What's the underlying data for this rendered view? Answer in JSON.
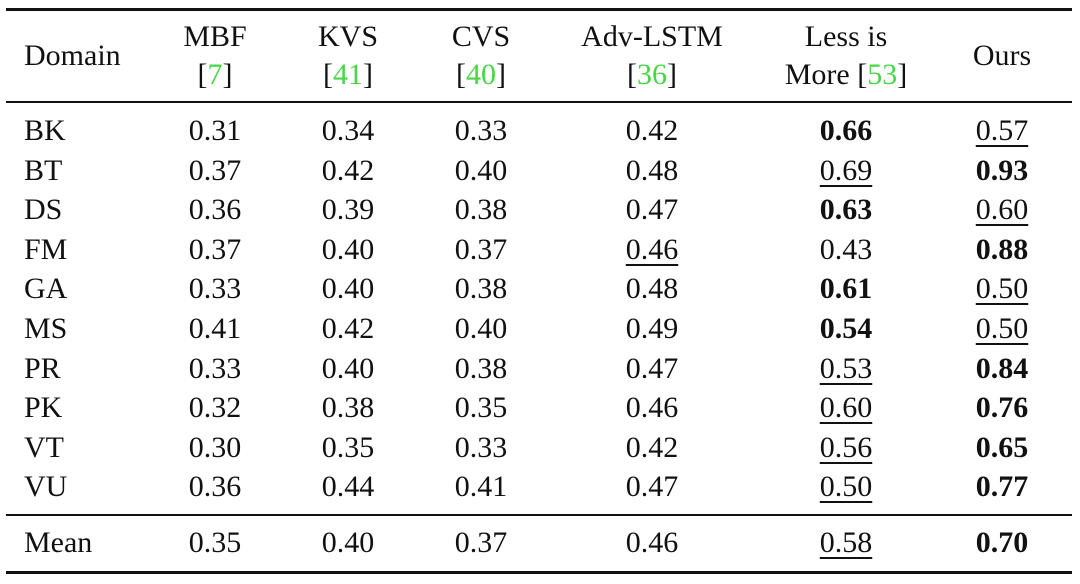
{
  "table": {
    "columns": [
      {
        "lines": [
          [
            {
              "text": "Domain"
            }
          ]
        ],
        "align": "left"
      },
      {
        "lines": [
          [
            {
              "text": "MBF"
            }
          ],
          [
            {
              "text": "["
            },
            {
              "text": "7",
              "color": "#45d745"
            },
            {
              "text": "]"
            }
          ]
        ]
      },
      {
        "lines": [
          [
            {
              "text": "KVS"
            }
          ],
          [
            {
              "text": "["
            },
            {
              "text": "41",
              "color": "#45d745"
            },
            {
              "text": "]"
            }
          ]
        ]
      },
      {
        "lines": [
          [
            {
              "text": "CVS"
            }
          ],
          [
            {
              "text": "["
            },
            {
              "text": "40",
              "color": "#45d745"
            },
            {
              "text": "]"
            }
          ]
        ]
      },
      {
        "lines": [
          [
            {
              "text": "Adv-LSTM"
            }
          ],
          [
            {
              "text": "["
            },
            {
              "text": "36",
              "color": "#45d745"
            },
            {
              "text": "]"
            }
          ]
        ]
      },
      {
        "lines": [
          [
            {
              "text": "Less is"
            }
          ],
          [
            {
              "text": "More ["
            },
            {
              "text": "53",
              "color": "#45d745"
            },
            {
              "text": "]"
            }
          ]
        ]
      },
      {
        "lines": [
          [
            {
              "text": "Ours"
            }
          ]
        ]
      }
    ],
    "rows": [
      [
        {
          "text": "BK"
        },
        {
          "text": "0.31"
        },
        {
          "text": "0.34"
        },
        {
          "text": "0.33"
        },
        {
          "text": "0.42"
        },
        {
          "text": "0.66",
          "style": "bold"
        },
        {
          "text": "0.57",
          "style": "underline"
        }
      ],
      [
        {
          "text": "BT"
        },
        {
          "text": "0.37"
        },
        {
          "text": "0.42"
        },
        {
          "text": "0.40"
        },
        {
          "text": "0.48"
        },
        {
          "text": "0.69",
          "style": "underline"
        },
        {
          "text": "0.93",
          "style": "bold"
        }
      ],
      [
        {
          "text": "DS"
        },
        {
          "text": "0.36"
        },
        {
          "text": "0.39"
        },
        {
          "text": "0.38"
        },
        {
          "text": "0.47"
        },
        {
          "text": "0.63",
          "style": "bold"
        },
        {
          "text": "0.60",
          "style": "underline"
        }
      ],
      [
        {
          "text": "FM"
        },
        {
          "text": "0.37"
        },
        {
          "text": "0.40"
        },
        {
          "text": "0.37"
        },
        {
          "text": "0.46",
          "style": "underline"
        },
        {
          "text": "0.43"
        },
        {
          "text": "0.88",
          "style": "bold"
        }
      ],
      [
        {
          "text": "GA"
        },
        {
          "text": "0.33"
        },
        {
          "text": "0.40"
        },
        {
          "text": "0.38"
        },
        {
          "text": "0.48"
        },
        {
          "text": "0.61",
          "style": "bold"
        },
        {
          "text": "0.50",
          "style": "underline"
        }
      ],
      [
        {
          "text": "MS"
        },
        {
          "text": "0.41"
        },
        {
          "text": "0.42"
        },
        {
          "text": "0.40"
        },
        {
          "text": "0.49"
        },
        {
          "text": "0.54",
          "style": "bold"
        },
        {
          "text": "0.50",
          "style": "underline"
        }
      ],
      [
        {
          "text": "PR"
        },
        {
          "text": "0.33"
        },
        {
          "text": "0.40"
        },
        {
          "text": "0.38"
        },
        {
          "text": "0.47"
        },
        {
          "text": "0.53",
          "style": "underline"
        },
        {
          "text": "0.84",
          "style": "bold"
        }
      ],
      [
        {
          "text": "PK"
        },
        {
          "text": "0.32"
        },
        {
          "text": "0.38"
        },
        {
          "text": "0.35"
        },
        {
          "text": "0.46"
        },
        {
          "text": "0.60",
          "style": "underline"
        },
        {
          "text": "0.76",
          "style": "bold"
        }
      ],
      [
        {
          "text": "VT"
        },
        {
          "text": "0.30"
        },
        {
          "text": "0.35"
        },
        {
          "text": "0.33"
        },
        {
          "text": "0.42"
        },
        {
          "text": "0.56",
          "style": "underline"
        },
        {
          "text": "0.65",
          "style": "bold"
        }
      ],
      [
        {
          "text": "VU"
        },
        {
          "text": "0.36"
        },
        {
          "text": "0.44"
        },
        {
          "text": "0.41"
        },
        {
          "text": "0.47"
        },
        {
          "text": "0.50",
          "style": "underline"
        },
        {
          "text": "0.77",
          "style": "bold"
        }
      ]
    ],
    "footer": [
      {
        "text": "Mean"
      },
      {
        "text": "0.35"
      },
      {
        "text": "0.40"
      },
      {
        "text": "0.37"
      },
      {
        "text": "0.46"
      },
      {
        "text": "0.58",
        "style": "underline"
      },
      {
        "text": "0.70",
        "style": "bold"
      }
    ]
  }
}
